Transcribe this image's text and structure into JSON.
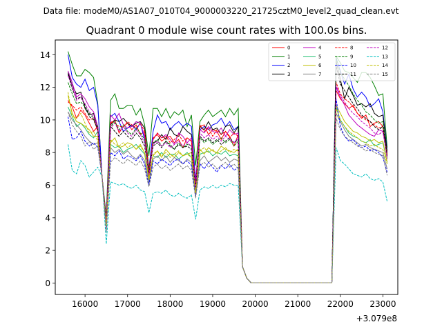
{
  "figure": {
    "suptitle": "Data file: modeM0/AS1A07_010T04_9000003220_21725cztM0_level2_quad_clean.evt",
    "title": "Quadrant 0 module wise count rates with 100.0s bins.",
    "offset_label": "+3.079e8"
  },
  "chart_data": {
    "type": "line",
    "title": "Quadrant 0 module wise count rates with 100.0s bins.",
    "xlabel": "",
    "ylabel": "",
    "x_offset": 307900000,
    "xlim": [
      15300,
      23350
    ],
    "ylim": [
      -0.7,
      14.9
    ],
    "xticks": [
      16000,
      17000,
      18000,
      19000,
      20000,
      21000,
      22000,
      23000
    ],
    "yticks": [
      0,
      2,
      4,
      6,
      8,
      10,
      12,
      14
    ],
    "x_start": 15600,
    "x_step": 100,
    "n_points": 75,
    "legend": {
      "position": "top-right",
      "ncol": 4
    },
    "series": [
      {
        "name": "0",
        "color": "#ff0000",
        "dash": "solid",
        "seg1": [
          11.2,
          10.8,
          10.1,
          10.6,
          10.3,
          9.8,
          9.3,
          9.6
        ],
        "seg2": [
          9.8,
          10.0,
          9.2,
          9.6,
          9.8,
          9.4,
          9.7,
          9.1,
          9.3
        ],
        "seg3": [
          8.9,
          9.1,
          8.7,
          8.9,
          9.0,
          8.6,
          8.8,
          8.3,
          8.9,
          8.7
        ],
        "seg4": [
          9.6,
          9.7,
          9.1,
          9.4,
          9.3,
          8.8,
          9.3,
          9.0,
          8.4,
          9.1
        ],
        "seg5": [
          11.8,
          11.3,
          11.0,
          10.7,
          10.9,
          10.4,
          10.1,
          10.3,
          9.6,
          9.8,
          9.9,
          9.6
        ],
        "dips": [
          3.8,
          6.4,
          5.6,
          7.8
        ]
      },
      {
        "name": "1",
        "color": "#008000",
        "dash": "solid",
        "seg1": [
          14.2,
          13.4,
          12.7,
          12.7,
          13.1,
          12.9,
          12.6,
          11.0
        ],
        "seg2": [
          11.2,
          11.6,
          10.7,
          10.7,
          10.9,
          10.9,
          10.3,
          10.7,
          9.7
        ],
        "seg3": [
          10.7,
          10.7,
          10.2,
          10.7,
          10.1,
          10.5,
          10.3,
          10.6,
          9.6,
          10.3
        ],
        "seg4": [
          9.9,
          10.3,
          10.6,
          10.2,
          10.4,
          10.6,
          10.2,
          10.7,
          10.3,
          10.7
        ],
        "seg5": [
          13.9,
          13.5,
          13.0,
          12.9,
          12.6,
          12.3,
          12.9,
          12.9,
          12.6,
          12.1,
          11.5,
          11.6
        ],
        "dips": [
          4.1,
          7.8,
          7.2,
          8.3
        ]
      },
      {
        "name": "2",
        "color": "#0000ff",
        "dash": "solid",
        "seg1": [
          14.0,
          12.6,
          12.2,
          12.0,
          12.5,
          11.8,
          12.0,
          10.9
        ],
        "seg2": [
          10.2,
          10.4,
          9.9,
          9.3,
          9.5,
          9.7,
          9.4,
          9.8,
          8.8
        ],
        "seg3": [
          9.3,
          10.3,
          9.8,
          9.9,
          9.4,
          9.7,
          9.9,
          9.6,
          9.8,
          9.6
        ],
        "seg4": [
          9.4,
          9.6,
          9.4,
          9.7,
          9.8,
          10.1,
          9.6,
          9.9,
          9.4,
          9.6
        ],
        "seg5": [
          13.8,
          13.0,
          12.2,
          12.8,
          11.9,
          11.4,
          11.7,
          11.4,
          10.8,
          11.0,
          11.3,
          10.5
        ],
        "dips": [
          3.9,
          7.0,
          6.3,
          8.1
        ]
      },
      {
        "name": "3",
        "color": "#000000",
        "dash": "solid",
        "seg1": [
          12.9,
          12.1,
          11.6,
          11.7,
          10.7,
          10.3,
          10.4,
          9.4
        ],
        "seg2": [
          9.7,
          10.0,
          9.9,
          10.1,
          9.8,
          9.6,
          9.8,
          9.9,
          9.5
        ],
        "seg3": [
          8.6,
          8.7,
          9.1,
          8.8,
          9.5,
          9.1,
          9.0,
          9.6,
          9.3,
          9.1
        ],
        "seg4": [
          9.6,
          9.4,
          9.9,
          9.4,
          9.5,
          9.1,
          9.6,
          9.7,
          9.2,
          9.6
        ],
        "seg5": [
          13.6,
          12.5,
          11.3,
          12.0,
          11.5,
          10.9,
          11.0,
          10.8,
          11.0,
          10.4,
          10.2,
          10.3
        ],
        "dips": [
          3.9,
          7.0,
          5.9,
          8.0
        ]
      },
      {
        "name": "4",
        "color": "#bf00bf",
        "dash": "solid",
        "seg1": [
          13.0,
          12.3,
          11.4,
          11.6,
          11.3,
          10.8,
          10.5,
          9.6
        ],
        "seg2": [
          10.3,
          10.0,
          10.4,
          9.7,
          9.5,
          9.6,
          9.9,
          9.8,
          9.0
        ],
        "seg3": [
          8.8,
          9.2,
          8.9,
          9.1,
          8.8,
          8.5,
          9.2,
          9.0,
          8.6,
          8.9
        ],
        "seg4": [
          9.4,
          9.2,
          9.6,
          9.3,
          9.2,
          9.5,
          9.0,
          9.4,
          9.1,
          9.2
        ],
        "seg5": [
          12.0,
          11.4,
          10.9,
          10.3,
          10.0,
          9.7,
          9.5,
          9.3,
          9.1,
          9.0,
          9.4,
          9.3
        ],
        "dips": [
          3.7,
          6.8,
          6.1,
          7.9
        ]
      },
      {
        "name": "5",
        "color": "#20c070",
        "dash": "solid",
        "seg1": [
          10.8,
          10.2,
          9.6,
          9.8,
          9.5,
          9.1,
          8.9,
          9.3
        ],
        "seg2": [
          8.5,
          8.3,
          8.4,
          8.0,
          8.2,
          8.3,
          8.5,
          8.2,
          7.9
        ],
        "seg3": [
          7.8,
          7.7,
          8.0,
          7.7,
          7.9,
          7.9,
          7.6,
          7.8,
          8.0,
          7.7
        ],
        "seg4": [
          7.9,
          8.0,
          8.1,
          7.8,
          8.0,
          7.9,
          8.1,
          7.8,
          7.9,
          7.8
        ],
        "seg5": [
          10.8,
          10.0,
          9.6,
          9.2,
          9.0,
          8.9,
          8.7,
          8.6,
          8.8,
          8.4,
          8.5,
          8.6
        ],
        "dips": [
          3.5,
          6.3,
          5.6,
          7.4
        ]
      },
      {
        "name": "6",
        "color": "#bfbf00",
        "dash": "solid",
        "seg1": [
          11.5,
          10.4,
          9.9,
          9.8,
          9.6,
          9.4,
          9.0,
          9.0
        ],
        "seg2": [
          8.6,
          8.9,
          8.3,
          8.4,
          8.6,
          8.5,
          8.2,
          8.5,
          8.0
        ],
        "seg3": [
          7.8,
          8.1,
          7.7,
          8.2,
          7.9,
          7.7,
          8.0,
          7.8,
          7.9,
          8.0
        ],
        "seg4": [
          8.2,
          7.9,
          8.3,
          8.1,
          8.0,
          8.4,
          8.2,
          8.1,
          8.0,
          8.2
        ],
        "seg5": [
          10.9,
          10.4,
          9.9,
          9.6,
          9.3,
          9.2,
          9.0,
          8.9,
          8.7,
          8.8,
          8.6,
          8.7
        ],
        "dips": [
          3.6,
          6.4,
          5.5,
          7.4
        ]
      },
      {
        "name": "7",
        "color": "#808080",
        "dash": "solid",
        "seg1": [
          10.5,
          10.0,
          9.7,
          9.4,
          9.0,
          8.7,
          8.5,
          8.6
        ],
        "seg2": [
          8.3,
          8.0,
          8.2,
          7.9,
          8.1,
          7.8,
          7.6,
          7.9,
          7.5
        ],
        "seg3": [
          7.6,
          7.8,
          7.5,
          7.8,
          7.4,
          7.7,
          7.5,
          7.3,
          7.6,
          7.4
        ],
        "seg4": [
          7.5,
          7.8,
          7.4,
          7.6,
          7.8,
          7.5,
          7.7,
          7.4,
          7.6,
          7.5
        ],
        "seg5": [
          10.4,
          9.9,
          9.4,
          9.0,
          8.8,
          8.6,
          8.4,
          8.5,
          8.3,
          8.2,
          8.1,
          8.0
        ],
        "dips": [
          3.3,
          6.1,
          5.3,
          7.0
        ]
      },
      {
        "name": "8",
        "color": "#ff0000",
        "dash": "dashed",
        "seg1": [
          11.1,
          10.9,
          10.6,
          10.8,
          10.4,
          10.0,
          10.1,
          9.3
        ],
        "seg2": [
          9.9,
          9.8,
          9.6,
          9.6,
          9.9,
          9.7,
          9.5,
          9.8,
          9.3
        ],
        "seg3": [
          8.8,
          9.2,
          8.9,
          9.0,
          8.6,
          8.8,
          9.1,
          8.7,
          8.9,
          8.7
        ],
        "seg4": [
          9.7,
          9.3,
          9.5,
          9.0,
          9.4,
          9.1,
          9.3,
          8.9,
          9.2,
          9.0
        ],
        "seg5": [
          12.3,
          11.6,
          11.3,
          11.1,
          10.8,
          10.4,
          10.2,
          10.0,
          9.9,
          9.7,
          9.5,
          9.6
        ],
        "dips": [
          3.8,
          6.9,
          6.0,
          7.9
        ]
      },
      {
        "name": "9",
        "color": "#008000",
        "dash": "dashed",
        "seg1": [
          12.3,
          11.6,
          11.0,
          11.1,
          10.8,
          10.4,
          10.1,
          9.6
        ],
        "seg2": [
          9.6,
          9.9,
          9.4,
          9.7,
          9.3,
          9.1,
          9.5,
          9.2,
          8.8
        ],
        "seg3": [
          8.6,
          8.8,
          8.4,
          8.7,
          8.5,
          8.2,
          8.6,
          8.3,
          8.5,
          8.4
        ],
        "seg4": [
          8.9,
          8.6,
          8.8,
          8.5,
          8.7,
          8.9,
          8.6,
          8.8,
          8.4,
          8.7
        ],
        "seg5": [
          13.8,
          12.9,
          12.5,
          12.1,
          11.6,
          11.2,
          10.9,
          10.5,
          10.3,
          10.0,
          9.8,
          9.9
        ],
        "dips": [
          3.8,
          6.8,
          5.9,
          7.7
        ]
      },
      {
        "name": "10",
        "color": "#0000ff",
        "dash": "dashed",
        "seg1": [
          10.2,
          8.8,
          8.9,
          9.3,
          8.7,
          8.4,
          8.6,
          8.3
        ],
        "seg2": [
          8.0,
          7.8,
          8.1,
          7.6,
          7.8,
          7.7,
          7.5,
          7.8,
          7.3
        ],
        "seg3": [
          7.5,
          7.3,
          7.6,
          7.4,
          7.2,
          7.5,
          7.6,
          7.3,
          7.5,
          7.2
        ],
        "seg4": [
          7.3,
          7.0,
          7.4,
          7.1,
          6.8,
          7.2,
          7.0,
          7.3,
          6.9,
          7.1
        ],
        "seg5": [
          11.3,
          9.6,
          9.0,
          8.7,
          8.8,
          8.5,
          8.3,
          8.4,
          8.1,
          8.2,
          8.0,
          7.7
        ],
        "dips": [
          3.2,
          6.0,
          5.3,
          6.8
        ]
      },
      {
        "name": "11",
        "color": "#000000",
        "dash": "dashed",
        "seg1": [
          12.8,
          11.9,
          11.3,
          11.4,
          10.9,
          10.2,
          10.0,
          9.4
        ],
        "seg2": [
          9.6,
          9.3,
          9.0,
          9.3,
          9.0,
          8.8,
          9.2,
          8.9,
          8.4
        ],
        "seg3": [
          8.4,
          8.6,
          8.3,
          8.7,
          8.4,
          8.2,
          8.5,
          8.3,
          8.4,
          8.2
        ],
        "seg4": [
          9.0,
          8.7,
          8.9,
          8.6,
          8.8,
          8.5,
          8.7,
          8.9,
          8.6,
          8.8
        ],
        "seg5": [
          13.3,
          12.2,
          11.8,
          11.4,
          11.0,
          10.7,
          10.3,
          10.1,
          9.9,
          9.6,
          9.4,
          9.6
        ],
        "dips": [
          3.7,
          6.7,
          5.8,
          7.7
        ]
      },
      {
        "name": "12",
        "color": "#bf00bf",
        "dash": "dashed",
        "seg1": [
          12.7,
          12.1,
          11.2,
          11.4,
          11.0,
          10.5,
          10.2,
          9.5
        ],
        "seg2": [
          9.5,
          9.8,
          9.3,
          9.6,
          9.2,
          9.0,
          9.4,
          9.1,
          8.6
        ],
        "seg3": [
          8.5,
          8.7,
          8.4,
          8.6,
          8.3,
          8.5,
          8.7,
          8.4,
          8.6,
          8.4
        ],
        "seg4": [
          9.2,
          8.9,
          9.1,
          8.8,
          9.0,
          8.7,
          9.0,
          8.8,
          8.6,
          8.9
        ],
        "seg5": [
          12.1,
          11.5,
          11.1,
          10.7,
          10.4,
          10.2,
          9.9,
          9.7,
          9.5,
          9.2,
          9.1,
          9.3
        ],
        "dips": [
          3.7,
          6.6,
          5.8,
          7.6
        ]
      },
      {
        "name": "13",
        "color": "#00bfbf",
        "dash": "dashed",
        "seg1": [
          8.5,
          6.9,
          6.7,
          7.5,
          7.2,
          6.5,
          6.8,
          7.1
        ],
        "seg2": [
          6.2,
          6.1,
          6.0,
          6.1,
          5.9,
          5.8,
          6.0,
          5.7,
          5.6
        ],
        "seg3": [
          5.5,
          5.6,
          5.5,
          5.7,
          5.4,
          5.3,
          5.5,
          5.3,
          5.2,
          5.4
        ],
        "seg4": [
          5.7,
          5.9,
          5.8,
          6.0,
          5.8,
          6.0,
          5.9,
          6.1,
          6.0,
          6.0
        ],
        "seg5": [
          8.3,
          7.5,
          7.3,
          7.0,
          6.7,
          6.6,
          6.5,
          6.7,
          6.4,
          6.3,
          6.4,
          6.2
        ],
        "dips": [
          2.4,
          4.3,
          3.9,
          5.0
        ]
      },
      {
        "name": "14",
        "color": "#bfbf00",
        "dash": "dashed",
        "seg1": [
          11.7,
          10.2,
          10.1,
          10.4,
          9.8,
          9.2,
          9.3,
          8.7
        ],
        "seg2": [
          8.8,
          8.5,
          8.4,
          8.6,
          8.3,
          8.5,
          8.2,
          8.4,
          8.0
        ],
        "seg3": [
          7.9,
          8.1,
          7.8,
          8.0,
          7.7,
          7.9,
          8.1,
          7.8,
          7.9,
          7.7
        ],
        "seg4": [
          8.1,
          8.3,
          8.0,
          8.2,
          7.9,
          8.1,
          8.3,
          8.0,
          8.2,
          8.1
        ],
        "seg5": [
          10.7,
          10.0,
          9.6,
          9.3,
          9.1,
          8.9,
          8.7,
          8.6,
          8.4,
          8.5,
          8.3,
          8.2
        ],
        "dips": [
          3.5,
          6.3,
          5.5,
          7.3
        ]
      },
      {
        "name": "15",
        "color": "#808080",
        "dash": "dashed",
        "seg1": [
          10.5,
          9.7,
          9.3,
          9.0,
          8.4,
          8.7,
          8.2,
          8.4
        ],
        "seg2": [
          7.4,
          7.7,
          7.5,
          7.3,
          7.6,
          7.4,
          7.2,
          7.5,
          7.0
        ],
        "seg3": [
          7.1,
          7.3,
          7.0,
          7.2,
          6.9,
          7.1,
          7.3,
          7.0,
          7.2,
          6.9
        ],
        "seg4": [
          7.2,
          7.4,
          7.1,
          7.3,
          7.0,
          7.2,
          7.4,
          7.1,
          7.3,
          7.0
        ],
        "seg5": [
          10.1,
          9.4,
          9.0,
          8.8,
          8.6,
          8.4,
          8.3,
          8.1,
          8.2,
          8.0,
          7.9,
          7.8
        ],
        "dips": [
          3.1,
          5.9,
          5.2,
          6.6
        ]
      }
    ]
  }
}
